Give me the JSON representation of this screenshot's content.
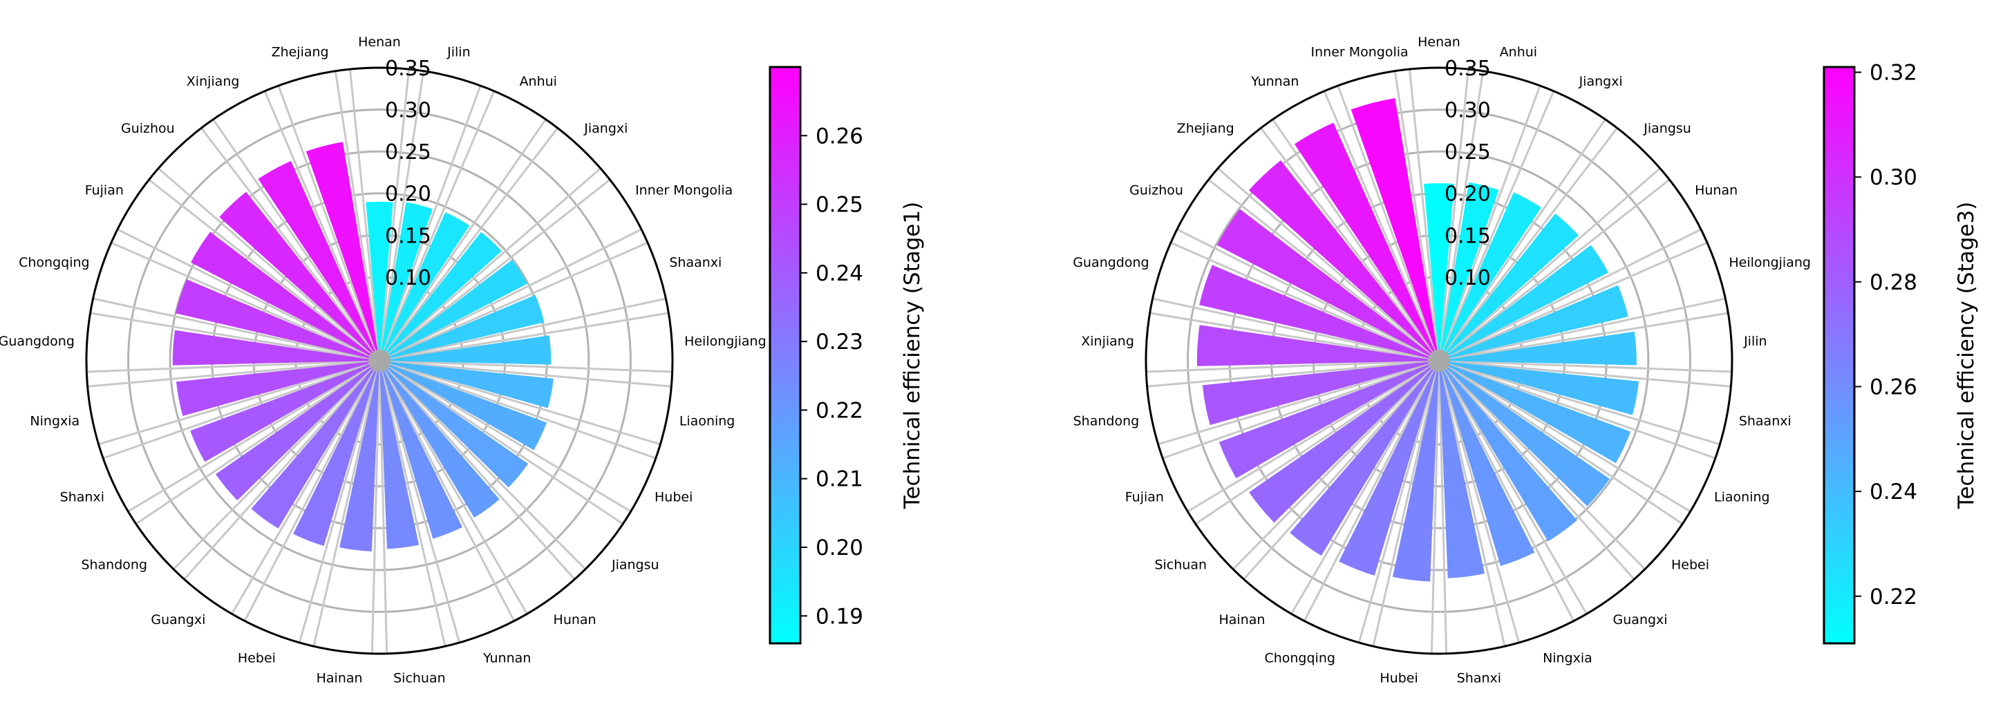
{
  "chart_data": [
    {
      "type": "polar-bar",
      "title": "",
      "radial_ticks": [
        "0.10",
        "0.15",
        "0.20",
        "0.25",
        "0.30",
        "0.35"
      ],
      "rlim": [
        0.0,
        0.35
      ],
      "grid": true,
      "colormap": "cool",
      "colorbar": {
        "label": "Technical efficiency (Stage1)",
        "ticks": [
          "0.19",
          "0.20",
          "0.21",
          "0.22",
          "0.23",
          "0.24",
          "0.25",
          "0.26"
        ],
        "range": [
          0.186,
          0.27
        ]
      },
      "categories": [
        "Henan",
        "Jilin",
        "Anhui",
        "Jiangxi",
        "Inner Mongolia",
        "Shaanxi",
        "Heilongjiang",
        "Liaoning",
        "Hubei",
        "Jiangsu",
        "Hunan",
        "Yunnan",
        "Sichuan",
        "Hainan",
        "Hebei",
        "Guangxi",
        "Shandong",
        "Shanxi",
        "Ningxia",
        "Guangdong",
        "Chongqing",
        "Fujian",
        "Guizhou",
        "Xinjiang",
        "Zhejiang"
      ],
      "values": [
        0.19,
        0.192,
        0.194,
        0.196,
        0.199,
        0.202,
        0.205,
        0.209,
        0.213,
        0.216,
        0.219,
        0.222,
        0.225,
        0.228,
        0.231,
        0.234,
        0.238,
        0.241,
        0.244,
        0.247,
        0.25,
        0.254,
        0.257,
        0.261,
        0.265
      ]
    },
    {
      "type": "polar-bar",
      "title": "",
      "radial_ticks": [
        "0.10",
        "0.15",
        "0.20",
        "0.25",
        "0.30",
        "0.35"
      ],
      "rlim": [
        0.0,
        0.35
      ],
      "grid": true,
      "colormap": "cool",
      "colorbar": {
        "label": "Technical efficiency (Stage3)",
        "ticks": [
          "0.22",
          "0.24",
          "0.26",
          "0.28",
          "0.30",
          "0.32"
        ],
        "range": [
          0.211,
          0.321
        ]
      },
      "categories": [
        "Henan",
        "Anhui",
        "Jiangxi",
        "Jiangsu",
        "Hunan",
        "Heilongjiang",
        "Jilin",
        "Shaanxi",
        "Liaoning",
        "Hebei",
        "Guangxi",
        "Ningxia",
        "Shanxi",
        "Hubei",
        "Chongqing",
        "Hainan",
        "Sichuan",
        "Fujian",
        "Shandong",
        "Xinjiang",
        "Guangdong",
        "Guizhou",
        "Zhejiang",
        "Yunnan",
        "Inner Mongolia"
      ],
      "values": [
        0.212,
        0.216,
        0.22,
        0.224,
        0.228,
        0.232,
        0.236,
        0.24,
        0.244,
        0.248,
        0.252,
        0.256,
        0.26,
        0.264,
        0.268,
        0.272,
        0.276,
        0.28,
        0.284,
        0.289,
        0.294,
        0.299,
        0.305,
        0.311,
        0.318
      ]
    }
  ]
}
